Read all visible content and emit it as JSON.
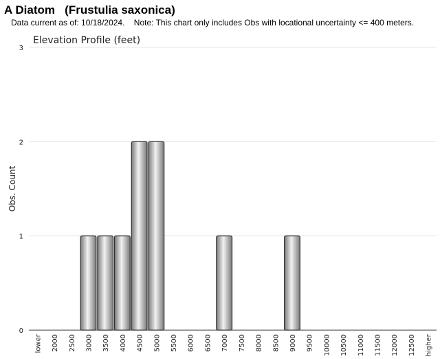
{
  "header": {
    "title": "A Diatom   (Frustulia saxonica)",
    "subtitle": "Data current as of: 10/18/2024.    Note: This chart only includes Obs with locational uncertainty <= 400 meters."
  },
  "colors": {
    "bar_light": "#f2f2f2",
    "bar_dark": "#7a7a7a",
    "bar_stroke": "#333333",
    "grid": "#e6e6e6",
    "axis": "#333333"
  },
  "chart_data": {
    "type": "bar",
    "title": "Elevation Profile (feet)",
    "xlabel": "",
    "ylabel": "Obs. Count",
    "ylim": [
      0,
      3
    ],
    "yticks": [
      0,
      1,
      2,
      3
    ],
    "grid": true,
    "legend": "none",
    "categories": [
      "lower",
      "2000",
      "2500",
      "3000",
      "3500",
      "4000",
      "4500",
      "5000",
      "5500",
      "6000",
      "6500",
      "7000",
      "7500",
      "8000",
      "8500",
      "9000",
      "9500",
      "10000",
      "10500",
      "11000",
      "11500",
      "12000",
      "12500",
      "higher"
    ],
    "values": [
      0,
      0,
      0,
      1,
      1,
      1,
      2,
      2,
      0,
      0,
      0,
      1,
      0,
      0,
      0,
      1,
      0,
      0,
      0,
      0,
      0,
      0,
      0,
      0
    ]
  }
}
